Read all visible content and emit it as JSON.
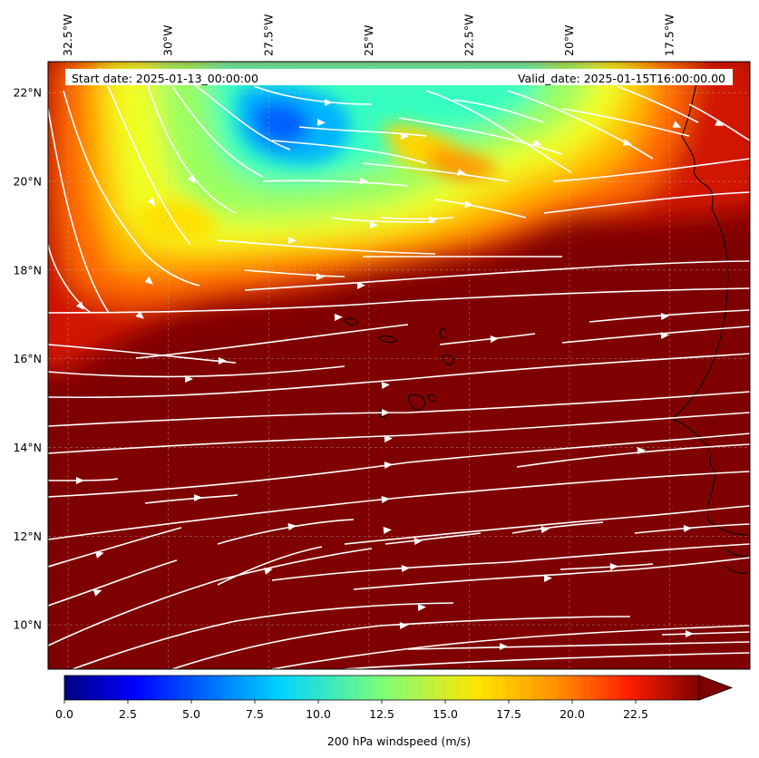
{
  "header": {
    "start_date": "Start date: 2025-01-13_00:00:00",
    "valid_date": "Valid_date: 2025-01-15T16:00:00.00"
  },
  "map": {
    "lon_range": [
      -33.0,
      -15.5
    ],
    "lat_range": [
      9.0,
      22.7
    ],
    "lon_ticks": [
      {
        "value": -32.5,
        "label": "32.5°W"
      },
      {
        "value": -30.0,
        "label": "30°W"
      },
      {
        "value": -27.5,
        "label": "27.5°W"
      },
      {
        "value": -25.0,
        "label": "25°W"
      },
      {
        "value": -22.5,
        "label": "22.5°W"
      },
      {
        "value": -20.0,
        "label": "20°W"
      },
      {
        "value": -17.5,
        "label": "17.5°W"
      }
    ],
    "lat_ticks": [
      {
        "value": 22,
        "label": "22°N"
      },
      {
        "value": 20,
        "label": "20°N"
      },
      {
        "value": 18,
        "label": "18°N"
      },
      {
        "value": 16,
        "label": "16°N"
      },
      {
        "value": 14,
        "label": "14°N"
      },
      {
        "value": 12,
        "label": "12°N"
      },
      {
        "value": 10,
        "label": "10°N"
      }
    ],
    "gridlines": true,
    "field_background_color": "#7f0000",
    "streamline_color": "#ffffff"
  },
  "colorbar": {
    "label": "200 hPa windspeed (m/s)",
    "ticks": [
      "0.0",
      "2.5",
      "5.0",
      "7.5",
      "10.0",
      "12.5",
      "15.0",
      "17.5",
      "20.0",
      "22.5"
    ],
    "range": [
      0,
      25
    ],
    "colormap": "jet",
    "extend": "max"
  }
}
